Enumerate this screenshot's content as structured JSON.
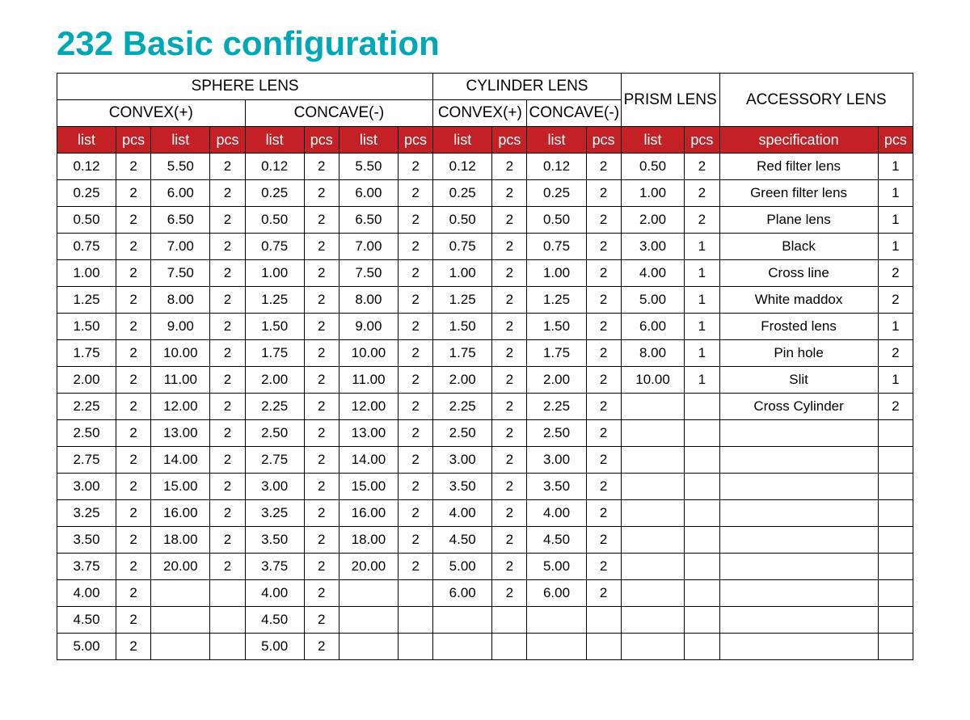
{
  "colors": {
    "title": "#00a8b5",
    "header_bg": "#c42127",
    "header_fg": "#ffffff",
    "border": "#000000",
    "background": "#ffffff",
    "text": "#000000"
  },
  "typography": {
    "title_fontsize_pt": 32,
    "cell_fontsize_pt": 13,
    "header_fontsize_pt": 14,
    "font_family": "Arial"
  },
  "title": "232 Basic configuration",
  "headers": {
    "sphere": "SPHERE LENS",
    "cylinder": "CYLINDER LENS",
    "prism": "PRISM LENS",
    "accessory": "ACCESSORY LENS",
    "convex": "CONVEX(+)",
    "concave": "CONCAVE(-)",
    "cyl_convex": "CONVEX(+)",
    "cyl_concave": "CONCAVE(-)",
    "list": "list",
    "pcs": "pcs",
    "spec": "specification"
  },
  "table": {
    "type": "table",
    "rows": [
      {
        "sc1": "0.12",
        "sc1p": "2",
        "sc2": "5.50",
        "sc2p": "2",
        "sv1": "0.12",
        "sv1p": "2",
        "sv2": "5.50",
        "sv2p": "2",
        "cx": "0.12",
        "cxp": "2",
        "cv": "0.12",
        "cvp": "2",
        "pr": "0.50",
        "prp": "2",
        "spec": "Red filter lens",
        "sp": "1"
      },
      {
        "sc1": "0.25",
        "sc1p": "2",
        "sc2": "6.00",
        "sc2p": "2",
        "sv1": "0.25",
        "sv1p": "2",
        "sv2": "6.00",
        "sv2p": "2",
        "cx": "0.25",
        "cxp": "2",
        "cv": "0.25",
        "cvp": "2",
        "pr": "1.00",
        "prp": "2",
        "spec": "Green filter lens",
        "sp": "1"
      },
      {
        "sc1": "0.50",
        "sc1p": "2",
        "sc2": "6.50",
        "sc2p": "2",
        "sv1": "0.50",
        "sv1p": "2",
        "sv2": "6.50",
        "sv2p": "2",
        "cx": "0.50",
        "cxp": "2",
        "cv": "0.50",
        "cvp": "2",
        "pr": "2.00",
        "prp": "2",
        "spec": "Plane lens",
        "sp": "1"
      },
      {
        "sc1": "0.75",
        "sc1p": "2",
        "sc2": "7.00",
        "sc2p": "2",
        "sv1": "0.75",
        "sv1p": "2",
        "sv2": "7.00",
        "sv2p": "2",
        "cx": "0.75",
        "cxp": "2",
        "cv": "0.75",
        "cvp": "2",
        "pr": "3.00",
        "prp": "1",
        "spec": "Black",
        "sp": "1"
      },
      {
        "sc1": "1.00",
        "sc1p": "2",
        "sc2": "7.50",
        "sc2p": "2",
        "sv1": "1.00",
        "sv1p": "2",
        "sv2": "7.50",
        "sv2p": "2",
        "cx": "1.00",
        "cxp": "2",
        "cv": "1.00",
        "cvp": "2",
        "pr": "4.00",
        "prp": "1",
        "spec": "Cross line",
        "sp": "2"
      },
      {
        "sc1": "1.25",
        "sc1p": "2",
        "sc2": "8.00",
        "sc2p": "2",
        "sv1": "1.25",
        "sv1p": "2",
        "sv2": "8.00",
        "sv2p": "2",
        "cx": "1.25",
        "cxp": "2",
        "cv": "1.25",
        "cvp": "2",
        "pr": "5.00",
        "prp": "1",
        "spec": "White maddox",
        "sp": "2"
      },
      {
        "sc1": "1.50",
        "sc1p": "2",
        "sc2": "9.00",
        "sc2p": "2",
        "sv1": "1.50",
        "sv1p": "2",
        "sv2": "9.00",
        "sv2p": "2",
        "cx": "1.50",
        "cxp": "2",
        "cv": "1.50",
        "cvp": "2",
        "pr": "6.00",
        "prp": "1",
        "spec": "Frosted lens",
        "sp": "1"
      },
      {
        "sc1": "1.75",
        "sc1p": "2",
        "sc2": "10.00",
        "sc2p": "2",
        "sv1": "1.75",
        "sv1p": "2",
        "sv2": "10.00",
        "sv2p": "2",
        "cx": "1.75",
        "cxp": "2",
        "cv": "1.75",
        "cvp": "2",
        "pr": "8.00",
        "prp": "1",
        "spec": "Pin hole",
        "sp": "2"
      },
      {
        "sc1": "2.00",
        "sc1p": "2",
        "sc2": "11.00",
        "sc2p": "2",
        "sv1": "2.00",
        "sv1p": "2",
        "sv2": "11.00",
        "sv2p": "2",
        "cx": "2.00",
        "cxp": "2",
        "cv": "2.00",
        "cvp": "2",
        "pr": "10.00",
        "prp": "1",
        "spec": "Slit",
        "sp": "1"
      },
      {
        "sc1": "2.25",
        "sc1p": "2",
        "sc2": "12.00",
        "sc2p": "2",
        "sv1": "2.25",
        "sv1p": "2",
        "sv2": "12.00",
        "sv2p": "2",
        "cx": "2.25",
        "cxp": "2",
        "cv": "2.25",
        "cvp": "2",
        "pr": "",
        "prp": "",
        "spec": "Cross Cylinder",
        "sp": "2"
      },
      {
        "sc1": "2.50",
        "sc1p": "2",
        "sc2": "13.00",
        "sc2p": "2",
        "sv1": "2.50",
        "sv1p": "2",
        "sv2": "13.00",
        "sv2p": "2",
        "cx": "2.50",
        "cxp": "2",
        "cv": "2.50",
        "cvp": "2",
        "pr": "",
        "prp": "",
        "spec": "",
        "sp": ""
      },
      {
        "sc1": "2.75",
        "sc1p": "2",
        "sc2": "14.00",
        "sc2p": "2",
        "sv1": "2.75",
        "sv1p": "2",
        "sv2": "14.00",
        "sv2p": "2",
        "cx": "3.00",
        "cxp": "2",
        "cv": "3.00",
        "cvp": "2",
        "pr": "",
        "prp": "",
        "spec": "",
        "sp": ""
      },
      {
        "sc1": "3.00",
        "sc1p": "2",
        "sc2": "15.00",
        "sc2p": "2",
        "sv1": "3.00",
        "sv1p": "2",
        "sv2": "15.00",
        "sv2p": "2",
        "cx": "3.50",
        "cxp": "2",
        "cv": "3.50",
        "cvp": "2",
        "pr": "",
        "prp": "",
        "spec": "",
        "sp": ""
      },
      {
        "sc1": "3.25",
        "sc1p": "2",
        "sc2": "16.00",
        "sc2p": "2",
        "sv1": "3.25",
        "sv1p": "2",
        "sv2": "16.00",
        "sv2p": "2",
        "cx": "4.00",
        "cxp": "2",
        "cv": "4.00",
        "cvp": "2",
        "pr": "",
        "prp": "",
        "spec": "",
        "sp": ""
      },
      {
        "sc1": "3.50",
        "sc1p": "2",
        "sc2": "18.00",
        "sc2p": "2",
        "sv1": "3.50",
        "sv1p": "2",
        "sv2": "18.00",
        "sv2p": "2",
        "cx": "4.50",
        "cxp": "2",
        "cv": "4.50",
        "cvp": "2",
        "pr": "",
        "prp": "",
        "spec": "",
        "sp": ""
      },
      {
        "sc1": "3.75",
        "sc1p": "2",
        "sc2": "20.00",
        "sc2p": "2",
        "sv1": "3.75",
        "sv1p": "2",
        "sv2": "20.00",
        "sv2p": "2",
        "cx": "5.00",
        "cxp": "2",
        "cv": "5.00",
        "cvp": "2",
        "pr": "",
        "prp": "",
        "spec": "",
        "sp": ""
      },
      {
        "sc1": "4.00",
        "sc1p": "2",
        "sc2": "",
        "sc2p": "",
        "sv1": "4.00",
        "sv1p": "2",
        "sv2": "",
        "sv2p": "",
        "cx": "6.00",
        "cxp": "2",
        "cv": "6.00",
        "cvp": "2",
        "pr": "",
        "prp": "",
        "spec": "",
        "sp": ""
      },
      {
        "sc1": "4.50",
        "sc1p": "2",
        "sc2": "",
        "sc2p": "",
        "sv1": "4.50",
        "sv1p": "2",
        "sv2": "",
        "sv2p": "",
        "cx": "",
        "cxp": "",
        "cv": "",
        "cvp": "",
        "pr": "",
        "prp": "",
        "spec": "",
        "sp": ""
      },
      {
        "sc1": "5.00",
        "sc1p": "2",
        "sc2": "",
        "sc2p": "",
        "sv1": "5.00",
        "sv1p": "2",
        "sv2": "",
        "sv2p": "",
        "cx": "",
        "cxp": "",
        "cv": "",
        "cvp": "",
        "pr": "",
        "prp": "",
        "spec": "",
        "sp": ""
      }
    ]
  }
}
